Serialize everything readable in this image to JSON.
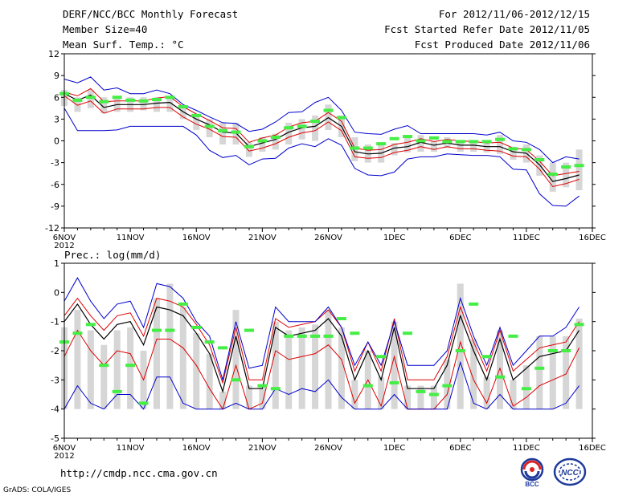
{
  "header": {
    "title": "DERF/NCC/BCC Monthly Forecast",
    "member_size": "Member Size=40",
    "variable": "Mean Surf. Temp.: °C",
    "forecast_period": "For 2012/11/06-2012/12/15",
    "fcst_started": "Fcst Started Refer Date 2012/11/05",
    "fcst_produced": "Fcst Produced Date 2012/11/06"
  },
  "footer": {
    "url": "http://cmdp.ncc.cma.gov.cn",
    "grads": "GrADS: COLA/IGES",
    "logo_bcc": "BCC",
    "logo_ncc": "NCC"
  },
  "colors": {
    "box": "#d6d6d6",
    "mean": "#000000",
    "spread": "#dd0000",
    "extreme": "#0000cc",
    "obs": "#44ee44"
  },
  "chart_data": [
    {
      "type": "line",
      "name": "temperature",
      "title": "Mean Surf. Temp.: °C",
      "xlim": [
        0,
        40
      ],
      "ylim": [
        -12,
        12
      ],
      "yticks": [
        -12,
        -9,
        -6,
        -3,
        0,
        3,
        6,
        9,
        12
      ],
      "yticklabels": [
        "-12",
        "-9",
        "-6",
        "-3",
        "0",
        "3",
        "6",
        "9",
        "12"
      ],
      "xticks": [
        0,
        5,
        10,
        15,
        20,
        25,
        30,
        35,
        40
      ],
      "xticklabels": [
        "6NOV",
        "11NOV",
        "16NOV",
        "21NOV",
        "26NOV",
        "1DEC",
        "6DEC",
        "11DEC",
        "16DEC"
      ],
      "xsublabel": "2012",
      "x": [
        0,
        1,
        2,
        3,
        4,
        5,
        6,
        7,
        8,
        9,
        10,
        11,
        12,
        13,
        14,
        15,
        16,
        17,
        18,
        19,
        20,
        21,
        22,
        23,
        24,
        25,
        26,
        27,
        28,
        29,
        30,
        31,
        32,
        33,
        34,
        35,
        36,
        37,
        38,
        39
      ],
      "series": [
        {
          "name": "mean",
          "values": [
            6.5,
            5.6,
            6.3,
            4.6,
            5.0,
            5.0,
            5.0,
            5.2,
            5.3,
            4.0,
            3.0,
            2.2,
            1.2,
            1.1,
            -0.8,
            -0.3,
            0.2,
            1.2,
            1.8,
            2.0,
            3.2,
            2.0,
            -1.5,
            -1.8,
            -1.7,
            -1.0,
            -0.8,
            -0.2,
            -0.6,
            -0.3,
            -0.6,
            -0.6,
            -0.8,
            -0.8,
            -1.5,
            -1.7,
            -3.3,
            -5.6,
            -5.2,
            -4.7
          ]
        },
        {
          "name": "spread_upper",
          "values": [
            6.7,
            6.2,
            7.2,
            5.4,
            5.5,
            5.5,
            5.5,
            5.9,
            6.1,
            4.7,
            3.7,
            2.8,
            1.8,
            1.7,
            -0.2,
            0.4,
            0.8,
            1.9,
            2.5,
            2.7,
            3.9,
            2.7,
            -1.0,
            -1.3,
            -1.2,
            -0.5,
            -0.2,
            0.3,
            -0.1,
            0.2,
            0.0,
            -0.1,
            -0.3,
            -0.2,
            -1.0,
            -1.2,
            -2.8,
            -4.8,
            -4.5,
            -4.2
          ]
        },
        {
          "name": "spread_lower",
          "values": [
            6.2,
            4.9,
            5.5,
            3.8,
            4.4,
            4.4,
            4.4,
            4.6,
            4.6,
            3.3,
            2.3,
            1.6,
            0.6,
            0.5,
            -1.4,
            -1.0,
            -0.4,
            0.5,
            1.1,
            1.4,
            2.6,
            1.4,
            -2.2,
            -2.4,
            -2.3,
            -1.6,
            -1.3,
            -0.8,
            -1.2,
            -0.8,
            -1.1,
            -1.1,
            -1.3,
            -1.4,
            -2.1,
            -2.2,
            -3.9,
            -6.3,
            -5.9,
            -5.3
          ]
        },
        {
          "name": "max",
          "values": [
            8.5,
            8.0,
            8.8,
            7.0,
            7.3,
            6.5,
            6.5,
            7.0,
            6.5,
            5.0,
            4.2,
            3.3,
            2.5,
            2.4,
            1.3,
            1.6,
            2.6,
            3.9,
            4.0,
            5.3,
            6.0,
            4.2,
            1.2,
            1.0,
            0.9,
            1.6,
            2.1,
            1.0,
            1.0,
            1.0,
            1.0,
            1.0,
            0.8,
            1.2,
            0.0,
            -0.2,
            -1.2,
            -3.0,
            -2.2,
            -2.5
          ]
        },
        {
          "name": "min",
          "values": [
            4.5,
            1.4,
            1.4,
            1.4,
            1.5,
            2.0,
            2.0,
            2.0,
            2.0,
            2.0,
            0.8,
            -1.3,
            -2.3,
            -2.0,
            -3.3,
            -2.5,
            -2.4,
            -1.0,
            -0.4,
            -0.8,
            0.3,
            -0.6,
            -3.8,
            -4.7,
            -4.8,
            -4.3,
            -2.5,
            -2.2,
            -2.2,
            -1.8,
            -1.9,
            -2.0,
            -2.0,
            -2.2,
            -3.9,
            -4.0,
            -7.3,
            -8.9,
            -9.0,
            -7.6
          ]
        },
        {
          "name": "observed",
          "values": [
            6.5,
            5.6,
            6.0,
            5.4,
            6.0,
            5.6,
            5.5,
            5.7,
            6.0,
            4.7,
            3.5,
            2.0,
            1.4,
            1.2,
            -0.8,
            0.0,
            0.5,
            1.8,
            2.0,
            2.7,
            4.2,
            3.2,
            -1.0,
            -1.0,
            -0.4,
            0.3,
            0.6,
            0.0,
            0.4,
            -0.1,
            -0.1,
            -0.1,
            -0.1,
            0.2,
            -1.1,
            -1.2,
            -2.6,
            -4.6,
            -3.6,
            -3.4
          ]
        }
      ],
      "box_low": [
        4.8,
        4.0,
        4.5,
        3.8,
        4.0,
        4.0,
        4.2,
        4.0,
        4.0,
        3.0,
        1.5,
        0.5,
        -0.5,
        -0.5,
        -2.2,
        -1.5,
        -1.2,
        -0.5,
        0.2,
        0.0,
        1.5,
        0.5,
        -2.8,
        -3.0,
        -3.0,
        -2.0,
        -1.6,
        -1.5,
        -1.5,
        -1.0,
        -1.5,
        -1.5,
        -1.6,
        -1.8,
        -2.6,
        -3.0,
        -4.8,
        -7.0,
        -6.4,
        -6.8
      ],
      "box_high": [
        7.0,
        6.0,
        7.0,
        6.0,
        6.0,
        6.0,
        6.0,
        6.0,
        6.0,
        4.5,
        3.5,
        3.0,
        2.5,
        2.5,
        -0.2,
        0.5,
        1.0,
        2.5,
        3.0,
        3.5,
        5.0,
        3.5,
        0.5,
        -0.5,
        -0.5,
        -0.3,
        0.5,
        0.8,
        0.0,
        0.5,
        0.0,
        0.0,
        -0.2,
        0.8,
        -0.8,
        -0.5,
        -2.0,
        -3.0,
        -3.0,
        -1.2
      ]
    },
    {
      "type": "line",
      "name": "precipitation",
      "title": "Prec.: log(mm/d)",
      "xlim": [
        0,
        40
      ],
      "ylim": [
        -5,
        1
      ],
      "yticks": [
        -5,
        -4,
        -3,
        -2,
        -1,
        0,
        1
      ],
      "yticklabels": [
        "-5",
        "-4",
        "-3",
        "-2",
        "-1",
        "0",
        "1"
      ],
      "xticks": [
        0,
        5,
        10,
        15,
        20,
        25,
        30,
        35,
        40
      ],
      "xticklabels": [
        "6NOV",
        "11NOV",
        "16NOV",
        "21NOV",
        "26NOV",
        "1DEC",
        "6DEC",
        "11DEC",
        "16DEC"
      ],
      "xsublabel": "2012",
      "x": [
        0,
        1,
        2,
        3,
        4,
        5,
        6,
        7,
        8,
        9,
        10,
        11,
        12,
        13,
        14,
        15,
        16,
        17,
        18,
        19,
        20,
        21,
        22,
        23,
        24,
        25,
        26,
        27,
        28,
        29,
        30,
        31,
        32,
        33,
        34,
        35,
        36,
        37,
        38,
        39
      ],
      "series": [
        {
          "name": "mean",
          "values": [
            -1.0,
            -0.4,
            -1.1,
            -1.6,
            -1.1,
            -1.0,
            -1.8,
            -0.5,
            -0.6,
            -0.8,
            -1.4,
            -2.1,
            -3.4,
            -1.5,
            -3.3,
            -3.3,
            -1.2,
            -1.5,
            -1.4,
            -1.3,
            -0.9,
            -1.5,
            -3.0,
            -2.0,
            -3.0,
            -1.2,
            -3.3,
            -3.3,
            -3.3,
            -2.5,
            -0.8,
            -2.0,
            -3.0,
            -1.6,
            -3.0,
            -2.6,
            -2.2,
            -2.1,
            -2.0,
            -1.3
          ]
        },
        {
          "name": "spread_upper",
          "values": [
            -0.8,
            -0.2,
            -0.8,
            -1.3,
            -0.8,
            -0.7,
            -1.5,
            -0.2,
            -0.3,
            -0.5,
            -1.1,
            -1.8,
            -3.1,
            -1.2,
            -3.0,
            -3.0,
            -0.9,
            -1.2,
            -1.1,
            -1.0,
            -0.6,
            -1.2,
            -2.7,
            -1.7,
            -2.7,
            -0.9,
            -3.0,
            -3.0,
            -3.0,
            -2.2,
            -0.5,
            -1.7,
            -2.7,
            -1.3,
            -2.7,
            -2.3,
            -1.9,
            -1.8,
            -1.7,
            -1.0
          ]
        },
        {
          "name": "spread_lower",
          "values": [
            -2.2,
            -1.3,
            -2.0,
            -2.5,
            -2.0,
            -2.1,
            -3.0,
            -1.6,
            -1.6,
            -1.9,
            -2.5,
            -3.3,
            -4.0,
            -2.5,
            -4.0,
            -3.8,
            -2.0,
            -2.3,
            -2.2,
            -2.1,
            -1.8,
            -2.3,
            -3.8,
            -3.0,
            -3.9,
            -2.2,
            -4.0,
            -4.0,
            -4.0,
            -3.5,
            -1.7,
            -3.0,
            -3.8,
            -2.6,
            -3.9,
            -3.6,
            -3.2,
            -3.0,
            -2.8,
            -1.9
          ]
        },
        {
          "name": "max",
          "values": [
            -0.3,
            0.5,
            -0.3,
            -0.9,
            -0.4,
            -0.3,
            -1.2,
            0.3,
            0.2,
            -0.2,
            -1.0,
            -1.5,
            -3.0,
            -1.0,
            -2.6,
            -2.5,
            -0.5,
            -1.0,
            -1.0,
            -1.0,
            -0.5,
            -1.2,
            -2.5,
            -1.7,
            -2.5,
            -1.0,
            -2.5,
            -2.5,
            -2.5,
            -2.0,
            -0.2,
            -1.5,
            -2.5,
            -1.2,
            -2.5,
            -2.0,
            -1.5,
            -1.5,
            -1.2,
            -0.5
          ]
        },
        {
          "name": "min",
          "values": [
            -4.0,
            -3.2,
            -3.8,
            -4.0,
            -3.5,
            -3.5,
            -4.0,
            -2.9,
            -2.9,
            -3.8,
            -4.0,
            -4.0,
            -4.0,
            -3.8,
            -4.0,
            -4.0,
            -3.3,
            -3.5,
            -3.3,
            -3.4,
            -3.0,
            -3.6,
            -4.0,
            -4.0,
            -4.0,
            -3.5,
            -4.0,
            -4.0,
            -4.0,
            -4.0,
            -2.4,
            -3.8,
            -4.0,
            -3.5,
            -4.0,
            -4.0,
            -4.0,
            -4.0,
            -3.8,
            -3.2
          ]
        },
        {
          "name": "observed",
          "values": [
            -1.7,
            -1.4,
            -1.1,
            -2.5,
            -3.4,
            -2.5,
            -3.8,
            -1.3,
            -1.3,
            -0.4,
            -1.2,
            -1.7,
            -1.9,
            -3.0,
            -1.3,
            -3.2,
            -3.3,
            -1.5,
            -1.5,
            -1.5,
            -1.5,
            -0.9,
            -1.4,
            -3.2,
            -2.2,
            -3.1,
            -1.4,
            -3.4,
            -3.5,
            -3.2,
            -2.0,
            -0.4,
            -2.2,
            -2.9,
            -1.5,
            -3.3,
            -2.6,
            -2.0,
            -2.0,
            -1.1
          ]
        }
      ],
      "box_low": [
        -4.0,
        -4.0,
        -4.0,
        -4.0,
        -4.0,
        -4.0,
        -4.0,
        -4.0,
        -4.0,
        -4.0,
        -4.0,
        -4.0,
        -4.0,
        -4.0,
        -4.0,
        -4.0,
        -4.0,
        -4.0,
        -4.0,
        -4.0,
        -4.0,
        -4.0,
        -4.0,
        -4.0,
        -4.0,
        -4.0,
        -4.0,
        -4.0,
        -4.0,
        -4.0,
        -4.0,
        -4.0,
        -4.0,
        -4.0,
        -4.0,
        -4.0,
        -4.0,
        -4.0,
        -4.0,
        -4.0
      ],
      "box_high": [
        -1.2,
        -0.6,
        -1.3,
        -1.8,
        -1.3,
        -1.2,
        -2.0,
        -0.2,
        0.3,
        -0.5,
        -1.4,
        -2.1,
        -3.4,
        -0.6,
        -3.2,
        -3.2,
        -1.0,
        -1.3,
        -1.2,
        -1.1,
        -0.6,
        -1.2,
        -3.0,
        -2.0,
        -2.9,
        -1.0,
        -3.2,
        -3.2,
        -3.2,
        -2.3,
        0.3,
        -1.6,
        -2.9,
        -1.3,
        -3.0,
        -2.5,
        -1.5,
        -1.5,
        -1.5,
        -0.9
      ]
    }
  ]
}
